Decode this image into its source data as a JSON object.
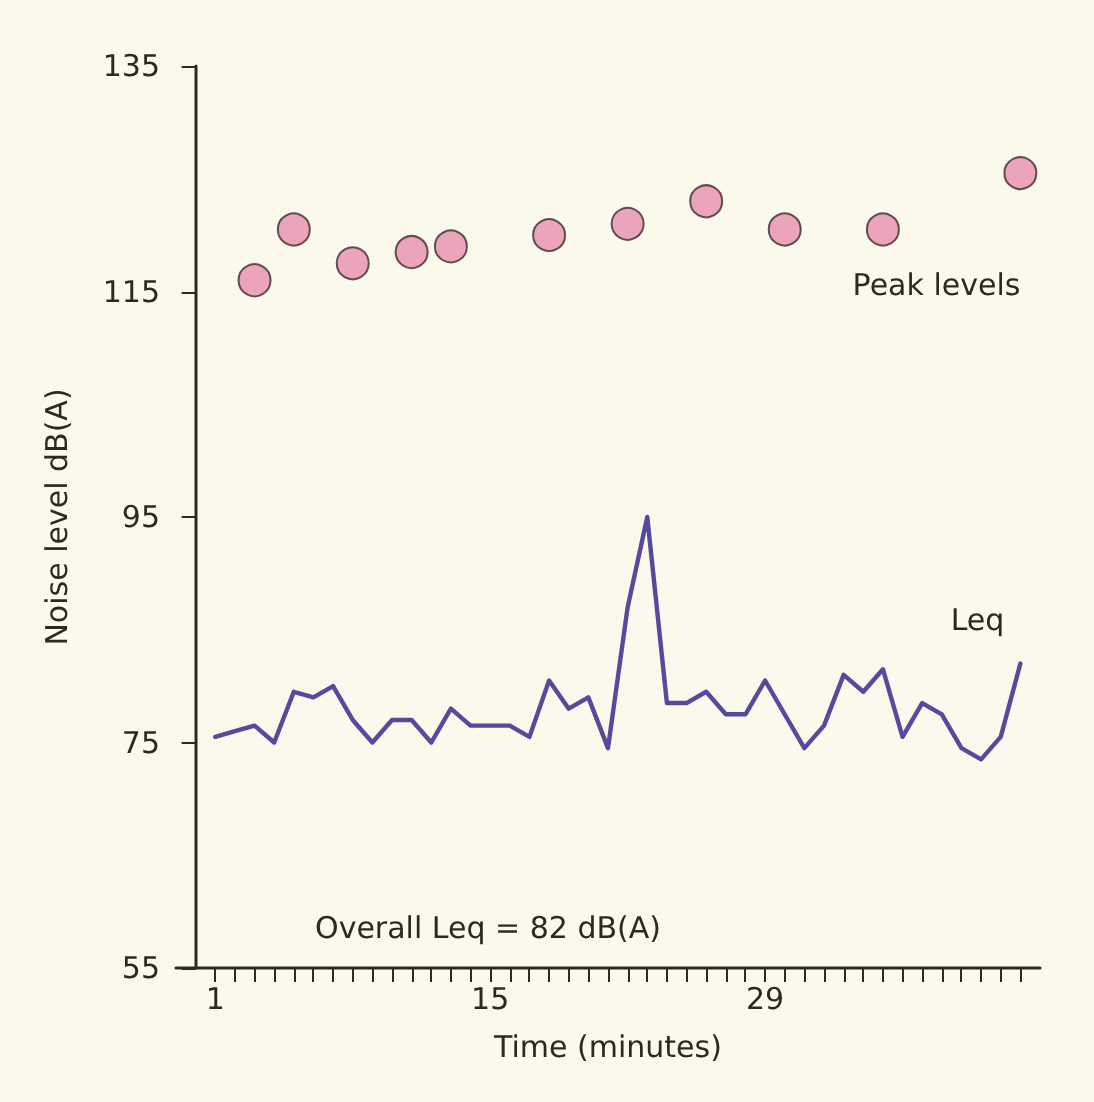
{
  "chart_data": {
    "type": "line",
    "xlabel": "Time (minutes)",
    "ylabel": "Noise level dB(A)",
    "annotations": [
      "Overall Leq = 82 dB(A)"
    ],
    "xlim": [
      -1,
      43
    ],
    "xticks": [
      {
        "value": 1,
        "label": "1"
      },
      {
        "value": 2,
        "label": null
      },
      {
        "value": 3,
        "label": null
      },
      {
        "value": 4,
        "label": null
      },
      {
        "value": 5,
        "label": null
      },
      {
        "value": 6,
        "label": null
      },
      {
        "value": 7,
        "label": null
      },
      {
        "value": 8,
        "label": null
      },
      {
        "value": 9,
        "label": null
      },
      {
        "value": 10,
        "label": null
      },
      {
        "value": 11,
        "label": null
      },
      {
        "value": 12,
        "label": null
      },
      {
        "value": 13,
        "label": null
      },
      {
        "value": 14,
        "label": null
      },
      {
        "value": 15,
        "label": "15"
      },
      {
        "value": 16,
        "label": null
      },
      {
        "value": 17,
        "label": null
      },
      {
        "value": 18,
        "label": null
      },
      {
        "value": 19,
        "label": null
      },
      {
        "value": 20,
        "label": null
      },
      {
        "value": 21,
        "label": null
      },
      {
        "value": 22,
        "label": null
      },
      {
        "value": 23,
        "label": null
      },
      {
        "value": 24,
        "label": null
      },
      {
        "value": 25,
        "label": null
      },
      {
        "value": 26,
        "label": null
      },
      {
        "value": 27,
        "label": null
      },
      {
        "value": 28,
        "label": null
      },
      {
        "value": 29,
        "label": "29"
      },
      {
        "value": 30,
        "label": null
      },
      {
        "value": 31,
        "label": null
      },
      {
        "value": 32,
        "label": null
      },
      {
        "value": 33,
        "label": null
      },
      {
        "value": 34,
        "label": null
      },
      {
        "value": 35,
        "label": null
      },
      {
        "value": 36,
        "label": null
      },
      {
        "value": 37,
        "label": null
      },
      {
        "value": 38,
        "label": null
      },
      {
        "value": 39,
        "label": null
      },
      {
        "value": 40,
        "label": null
      },
      {
        "value": 41,
        "label": null
      },
      {
        "value": 42,
        "label": null
      }
    ],
    "ylim": [
      55,
      135
    ],
    "yticks": [
      55,
      75,
      95,
      115,
      135
    ],
    "grid": false,
    "legend": false,
    "line_style": "solid",
    "series": [
      {
        "name": "Peak levels",
        "type": "scatter",
        "marker": "circle",
        "color": "#e98fb0",
        "x": [
          3,
          5,
          8,
          11,
          13,
          18,
          22,
          26,
          30,
          35,
          42
        ],
        "values": [
          116,
          120.5,
          117.5,
          118.5,
          119,
          120,
          121,
          123,
          120.5,
          120.5,
          125.5
        ]
      },
      {
        "name": "Leq",
        "marker": "none",
        "color": "#564a9e",
        "x": [
          1,
          2,
          3,
          4,
          5,
          6,
          7,
          8,
          9,
          10,
          11,
          12,
          13,
          14,
          15,
          16,
          17,
          18,
          19,
          20,
          21,
          22,
          23,
          24,
          25,
          26,
          27,
          28,
          29,
          30,
          31,
          32,
          33,
          34,
          35,
          36,
          37,
          38,
          39,
          40,
          41,
          42
        ],
        "values": [
          75.5,
          76,
          76.5,
          75,
          79.5,
          79,
          80,
          77,
          75,
          77,
          77,
          75,
          78,
          76.5,
          76.5,
          76.5,
          75.5,
          80.5,
          78,
          79,
          74.5,
          87,
          95,
          78.5,
          78.5,
          79.5,
          77.5,
          77.5,
          80.5,
          77.5,
          74.5,
          76.5,
          81,
          79.5,
          81.5,
          75.5,
          78.5,
          77.5,
          74.5,
          73.5,
          75.5,
          82
        ]
      }
    ]
  }
}
